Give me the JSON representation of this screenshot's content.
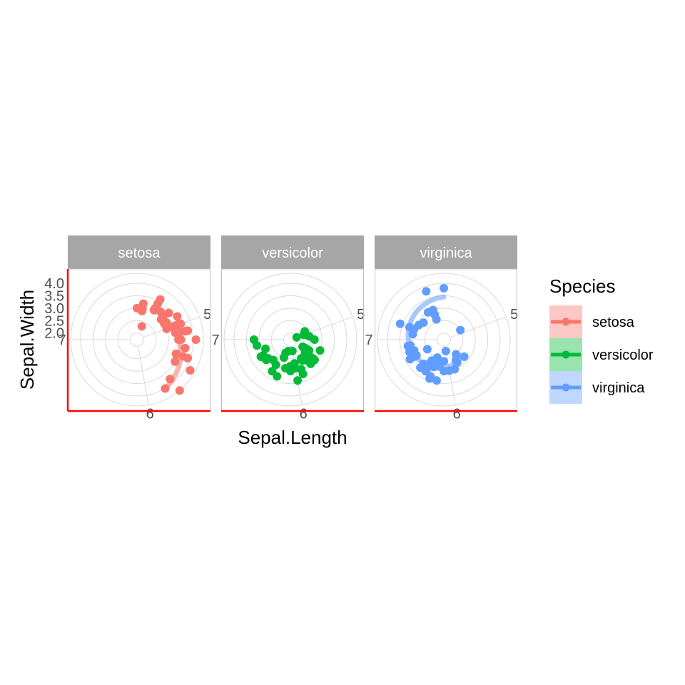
{
  "chart_data": {
    "type": "scatter",
    "coord": "polar",
    "theta": "Sepal.Length",
    "r": "Sepal.Width",
    "xlabel": "Sepal.Length",
    "ylabel": "Sepal.Width",
    "theta_range": [
      4.3,
      7.9
    ],
    "theta_ticks": [
      5,
      6,
      7
    ],
    "r_range": [
      2.0,
      4.4
    ],
    "r_ticks": [
      2.0,
      2.5,
      3.0,
      3.5,
      4.0
    ],
    "r_tick_labels": [
      "2.0",
      "2.5",
      "3.0",
      "3.5",
      "4.0"
    ],
    "theta_tick_labels": [
      "5",
      "6",
      "7"
    ],
    "facets": [
      "setosa",
      "versicolor",
      "virginica"
    ],
    "legend": {
      "title": "Species",
      "position": "right",
      "entries": [
        "setosa",
        "versicolor",
        "virginica"
      ]
    },
    "colors": {
      "setosa": "#F8766D",
      "versicolor": "#00BA38",
      "virginica": "#619CFF",
      "strip": "#A6A6A6",
      "grid": "#D9D9D9",
      "axis_line": "#FF0000"
    },
    "series": [
      {
        "name": "setosa",
        "points": [
          [
            5.1,
            3.5
          ],
          [
            4.9,
            3.0
          ],
          [
            4.7,
            3.2
          ],
          [
            4.6,
            3.1
          ],
          [
            5.0,
            3.6
          ],
          [
            5.4,
            3.9
          ],
          [
            4.6,
            3.4
          ],
          [
            5.0,
            3.4
          ],
          [
            4.4,
            2.9
          ],
          [
            4.9,
            3.1
          ],
          [
            5.4,
            3.7
          ],
          [
            4.8,
            3.4
          ],
          [
            4.8,
            3.0
          ],
          [
            4.3,
            3.0
          ],
          [
            5.8,
            4.0
          ],
          [
            5.7,
            4.4
          ],
          [
            5.4,
            3.9
          ],
          [
            5.1,
            3.5
          ],
          [
            5.7,
            3.8
          ],
          [
            5.1,
            3.8
          ],
          [
            5.4,
            3.4
          ],
          [
            5.1,
            3.7
          ],
          [
            4.6,
            3.6
          ],
          [
            5.1,
            3.3
          ],
          [
            4.8,
            3.4
          ],
          [
            5.0,
            3.0
          ],
          [
            5.0,
            3.4
          ],
          [
            5.2,
            3.5
          ],
          [
            5.2,
            3.4
          ],
          [
            4.7,
            3.2
          ],
          [
            4.8,
            3.1
          ],
          [
            5.4,
            3.4
          ],
          [
            5.2,
            4.1
          ],
          [
            5.5,
            4.2
          ],
          [
            4.9,
            3.1
          ],
          [
            5.0,
            3.2
          ],
          [
            5.5,
            3.5
          ],
          [
            4.9,
            3.6
          ],
          [
            4.4,
            3.0
          ],
          [
            5.1,
            3.4
          ],
          [
            5.0,
            3.5
          ],
          [
            4.5,
            2.3
          ],
          [
            4.4,
            3.2
          ],
          [
            5.0,
            3.5
          ],
          [
            5.1,
            3.8
          ],
          [
            4.8,
            3.0
          ],
          [
            5.1,
            3.8
          ],
          [
            4.6,
            3.2
          ],
          [
            5.3,
            3.7
          ],
          [
            5.0,
            3.3
          ]
        ]
      },
      {
        "name": "versicolor",
        "points": [
          [
            7.0,
            3.2
          ],
          [
            6.4,
            3.2
          ],
          [
            6.9,
            3.1
          ],
          [
            5.5,
            2.3
          ],
          [
            6.5,
            2.8
          ],
          [
            5.7,
            2.8
          ],
          [
            6.3,
            3.3
          ],
          [
            4.9,
            2.4
          ],
          [
            6.6,
            2.9
          ],
          [
            5.2,
            2.7
          ],
          [
            5.0,
            2.0
          ],
          [
            5.9,
            3.0
          ],
          [
            6.0,
            2.2
          ],
          [
            6.1,
            2.9
          ],
          [
            5.6,
            2.9
          ],
          [
            6.7,
            3.1
          ],
          [
            5.6,
            3.0
          ],
          [
            5.8,
            2.7
          ],
          [
            6.2,
            2.2
          ],
          [
            5.6,
            2.5
          ],
          [
            5.9,
            3.2
          ],
          [
            6.1,
            2.8
          ],
          [
            6.3,
            2.5
          ],
          [
            6.1,
            2.8
          ],
          [
            6.4,
            2.9
          ],
          [
            6.6,
            3.0
          ],
          [
            6.8,
            2.8
          ],
          [
            6.7,
            3.0
          ],
          [
            6.0,
            2.9
          ],
          [
            5.7,
            2.6
          ],
          [
            5.5,
            2.4
          ],
          [
            5.5,
            2.4
          ],
          [
            5.8,
            2.7
          ],
          [
            6.0,
            2.7
          ],
          [
            5.4,
            3.0
          ],
          [
            6.0,
            3.4
          ],
          [
            6.7,
            3.1
          ],
          [
            6.3,
            2.3
          ],
          [
            5.6,
            3.0
          ],
          [
            5.5,
            2.5
          ],
          [
            5.5,
            2.6
          ],
          [
            6.1,
            3.0
          ],
          [
            5.8,
            2.6
          ],
          [
            5.0,
            2.3
          ],
          [
            5.6,
            2.7
          ],
          [
            5.7,
            3.0
          ],
          [
            5.7,
            2.9
          ],
          [
            6.2,
            2.9
          ],
          [
            5.1,
            2.5
          ],
          [
            5.7,
            2.8
          ]
        ]
      },
      {
        "name": "virginica",
        "points": [
          [
            6.3,
            3.3
          ],
          [
            5.8,
            2.7
          ],
          [
            7.1,
            3.0
          ],
          [
            6.3,
            2.9
          ],
          [
            6.5,
            3.0
          ],
          [
            7.6,
            3.0
          ],
          [
            4.9,
            2.5
          ],
          [
            7.3,
            2.9
          ],
          [
            6.7,
            2.5
          ],
          [
            7.2,
            3.6
          ],
          [
            6.5,
            3.2
          ],
          [
            6.4,
            2.7
          ],
          [
            6.8,
            3.0
          ],
          [
            5.7,
            2.5
          ],
          [
            5.8,
            2.8
          ],
          [
            6.4,
            3.2
          ],
          [
            6.5,
            3.0
          ],
          [
            7.7,
            3.8
          ],
          [
            7.7,
            2.6
          ],
          [
            6.0,
            2.2
          ],
          [
            6.9,
            3.2
          ],
          [
            5.6,
            2.8
          ],
          [
            7.7,
            2.8
          ],
          [
            6.3,
            2.7
          ],
          [
            6.7,
            3.3
          ],
          [
            7.2,
            3.2
          ],
          [
            6.2,
            2.8
          ],
          [
            6.1,
            3.0
          ],
          [
            6.4,
            2.8
          ],
          [
            7.2,
            3.0
          ],
          [
            7.4,
            2.8
          ],
          [
            7.9,
            3.8
          ],
          [
            6.4,
            2.8
          ],
          [
            6.3,
            2.8
          ],
          [
            6.1,
            2.6
          ],
          [
            7.7,
            3.0
          ],
          [
            6.3,
            3.4
          ],
          [
            6.4,
            3.1
          ],
          [
            6.0,
            3.0
          ],
          [
            6.9,
            3.1
          ],
          [
            6.7,
            3.1
          ],
          [
            6.9,
            3.1
          ],
          [
            5.8,
            2.7
          ],
          [
            6.8,
            3.2
          ],
          [
            6.7,
            3.3
          ],
          [
            6.7,
            3.0
          ],
          [
            6.3,
            2.5
          ],
          [
            6.5,
            3.0
          ],
          [
            6.2,
            3.4
          ],
          [
            5.9,
            3.0
          ]
        ]
      }
    ],
    "smooth_lines": [
      {
        "name": "setosa",
        "from": [
          4.9,
          3.1
        ],
        "to": [
          5.8,
          4.0
        ]
      },
      {
        "name": "virginica",
        "from": [
          5.6,
          2.7
        ],
        "to": [
          7.9,
          3.45
        ]
      }
    ]
  }
}
